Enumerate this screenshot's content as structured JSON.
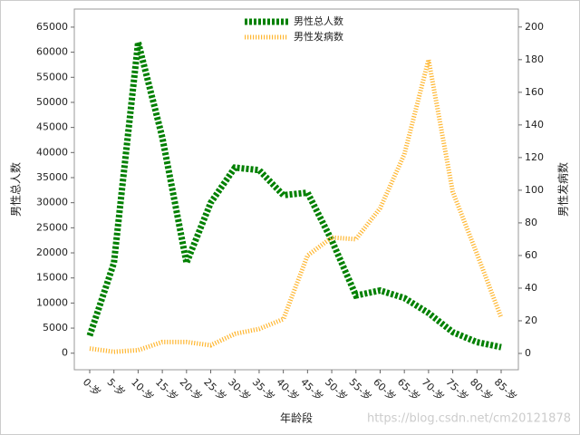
{
  "chart_data": {
    "type": "line",
    "x_label": "年龄段",
    "y_label": "男性总人数",
    "y2_label": "男性发病数",
    "watermark": "https://blog.csdn.net/cm20121878",
    "categories": [
      "0-岁",
      "5-岁",
      "10-岁",
      "15-岁",
      "20-岁",
      "25-岁",
      "30-岁",
      "35-岁",
      "40-岁",
      "45-岁",
      "50-岁",
      "55-岁",
      "60-岁",
      "65-岁",
      "70-岁",
      "75-岁",
      "80-岁",
      "85-岁"
    ],
    "series": [
      {
        "name": "男性总人数",
        "color": "#008000",
        "values": [
          3500,
          18000,
          62000,
          43000,
          18000,
          30000,
          37000,
          36500,
          31500,
          32000,
          22500,
          11500,
          12500,
          11000,
          8000,
          4200,
          2200,
          1200
        ]
      },
      {
        "name": "男性发病数",
        "color": "#ffb732",
        "axis": "y2",
        "values": [
          3,
          1,
          2,
          7,
          7,
          5,
          12,
          15,
          21,
          60,
          71,
          70,
          89,
          122,
          180,
          99,
          61,
          22
        ]
      }
    ],
    "ylim": [
      -3300,
      68600
    ],
    "yticks": [
      0,
      5000,
      10000,
      15000,
      20000,
      25000,
      30000,
      35000,
      40000,
      45000,
      50000,
      55000,
      60000,
      65000
    ],
    "y2lim": [
      -10,
      211
    ],
    "y2ticks": [
      0,
      20,
      40,
      60,
      80,
      100,
      120,
      140,
      160,
      180,
      200
    ],
    "legend": "top"
  }
}
